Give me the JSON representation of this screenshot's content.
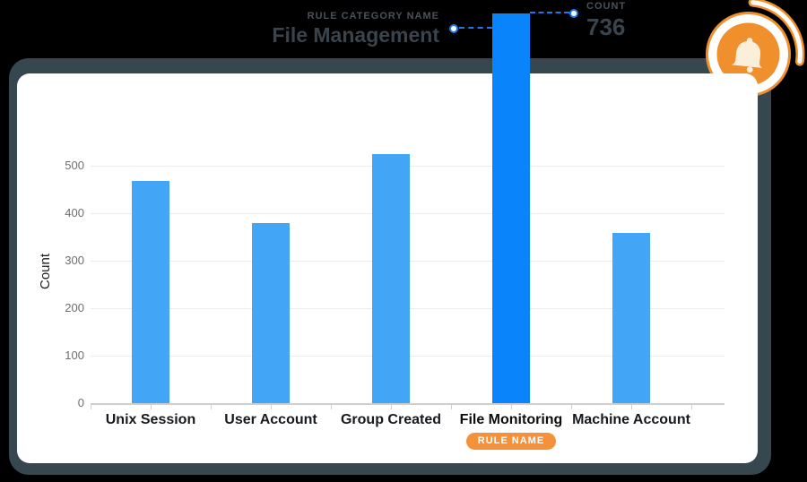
{
  "page": {
    "background": "#000000",
    "panel_shadow_color": "#37474F",
    "card_color": "#ffffff"
  },
  "callouts": {
    "category": {
      "label": "RULE CATEGORY NAME",
      "value": "File Management"
    },
    "count": {
      "label": "COUNT",
      "value": "736"
    },
    "rule_badge": {
      "label": "RULE NAME",
      "bg": "#F4913A"
    },
    "connector_color": "#1B78F2"
  },
  "bell_icon": {
    "name": "bell-notification-icon",
    "orange": "#F0902C",
    "bell_fill": "#FBEFDB"
  },
  "chart_data": {
    "type": "bar",
    "title": "",
    "categories": [
      "Unix Session",
      "User Account",
      "Group Created",
      "File Monitoring",
      "Machine Account"
    ],
    "values": [
      468,
      380,
      524,
      736,
      358
    ],
    "highlight_index": 3,
    "highlighted_category": "File Monitoring",
    "xlabel": "",
    "ylabel": "Count",
    "yticks": [
      0,
      100,
      200,
      300,
      400,
      500
    ],
    "ylim": [
      0,
      500
    ],
    "grid": true,
    "legend_position": "none",
    "bar_color": "#42A5F5",
    "highlight_bar_color": "#0A84FB"
  }
}
